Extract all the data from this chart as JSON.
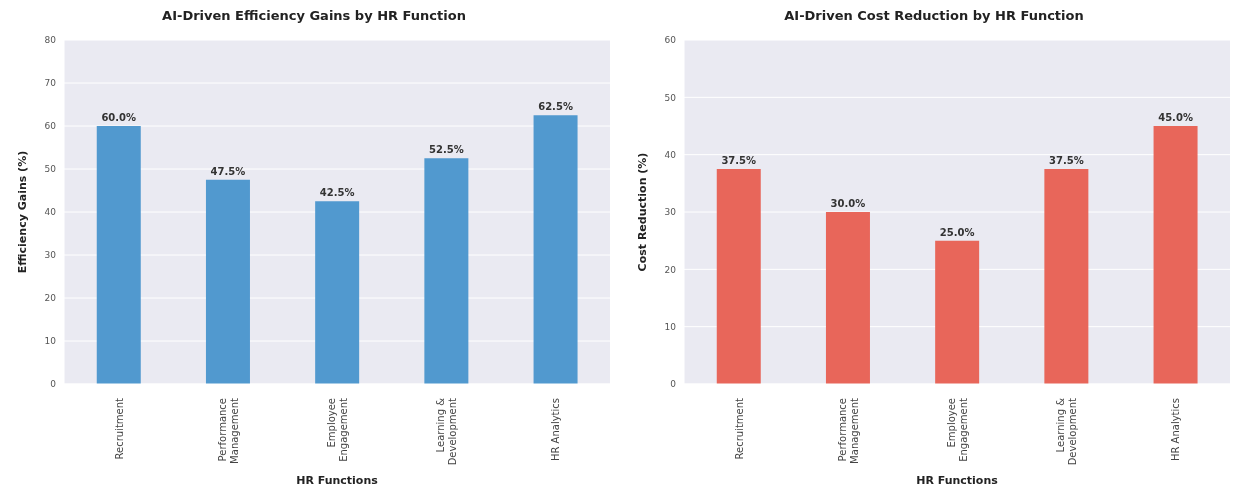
{
  "chart_data": [
    {
      "type": "bar",
      "title": "AI-Driven Efficiency Gains by HR Function",
      "xlabel": "HR Functions",
      "ylabel": "Efficiency Gains (%)",
      "categories": [
        "Recruitment",
        "Performance Management",
        "Employee Engagement",
        "Learning & Development",
        "HR Analytics"
      ],
      "values": [
        60,
        47.5,
        42.5,
        52.5,
        62.5
      ],
      "value_labels": [
        "60.0%",
        "47.5%",
        "42.5%",
        "52.5%",
        "62.5%"
      ],
      "color": "#5199cf",
      "ylim": [
        0,
        80
      ],
      "yticks": [
        0,
        10,
        20,
        30,
        40,
        50,
        60,
        70,
        80
      ],
      "grid": "y"
    },
    {
      "type": "bar",
      "title": "AI-Driven Cost Reduction by HR Function",
      "xlabel": "HR Functions",
      "ylabel": "Cost Reduction (%)",
      "categories": [
        "Recruitment",
        "Performance Management",
        "Employee Engagement",
        "Learning & Development",
        "HR Analytics"
      ],
      "values": [
        37.5,
        30,
        25,
        37.5,
        45
      ],
      "value_labels": [
        "37.5%",
        "30.0%",
        "25.0%",
        "37.5%",
        "45.0%"
      ],
      "color": "#e8665a",
      "ylim": [
        0,
        60
      ],
      "yticks": [
        0,
        10,
        20,
        30,
        40,
        50,
        60
      ],
      "grid": "y"
    }
  ]
}
